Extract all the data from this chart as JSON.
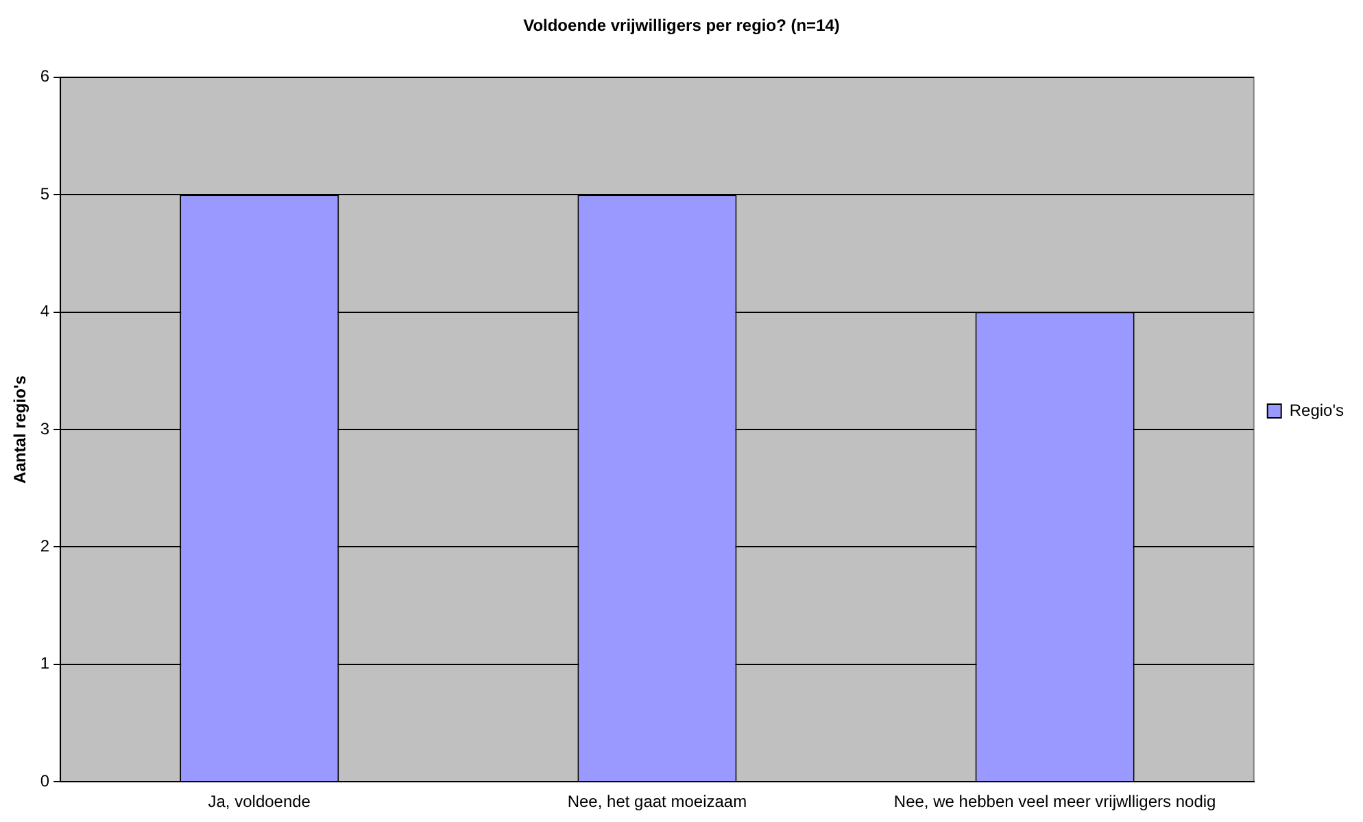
{
  "chart_data": {
    "type": "bar",
    "title": "Voldoende vrijwilligers per regio? (n=14)",
    "ylabel": "Aantal regio's",
    "categories": [
      "Ja, voldoende",
      "Nee, het gaat moeizaam",
      "Nee, we hebben veel meer vrijwlligers nodig"
    ],
    "series": [
      {
        "name": "Regio's",
        "color": "#9999ff",
        "values": [
          5,
          5,
          4
        ]
      }
    ],
    "ylim": [
      0,
      6
    ],
    "yticks": [
      0,
      1,
      2,
      3,
      4,
      5,
      6
    ],
    "grid": "y",
    "legend": "right"
  }
}
